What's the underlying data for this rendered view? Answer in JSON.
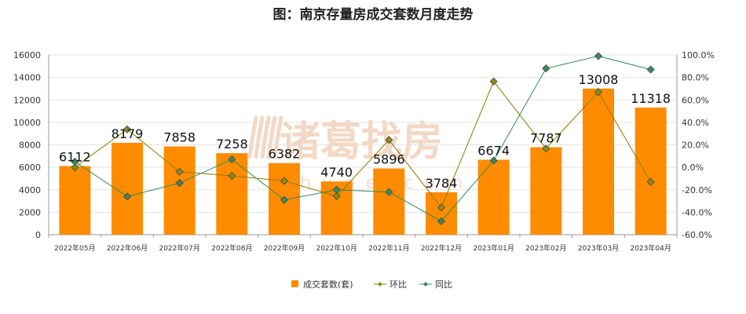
{
  "chart_data": {
    "type": "bar",
    "title": "图：南京存量房成交套数月度走势",
    "categories": [
      "2022年05月",
      "2022年06月",
      "2022年07月",
      "2022年08月",
      "2022年09月",
      "2022年10月",
      "2022年11月",
      "2022年12月",
      "2023年01月",
      "2023年02月",
      "2023年03月",
      "2023年04月"
    ],
    "series": [
      {
        "name": "成交套数(套)",
        "type": "bar",
        "axis": "left",
        "color": "#ff8c00",
        "values": [
          6112,
          8179,
          7858,
          7258,
          6382,
          4740,
          5896,
          3784,
          6674,
          7787,
          13008,
          11318
        ]
      },
      {
        "name": "环比",
        "type": "line",
        "axis": "right",
        "color": "#8c7a00",
        "marker_color": "#8b8b1f",
        "values": [
          0.0,
          33.8,
          -3.9,
          -7.6,
          -12.1,
          -25.7,
          24.4,
          -35.8,
          76.4,
          16.7,
          67.0,
          -13.0
        ]
      },
      {
        "name": "同比",
        "type": "line",
        "axis": "right",
        "color": "#2e8b57",
        "marker_color": "#3a8a5a",
        "values": [
          5.0,
          -26.0,
          -14.0,
          7.0,
          -29.0,
          -20.0,
          -22.0,
          -48.0,
          6.0,
          88.0,
          99.0,
          87.0
        ]
      }
    ],
    "y_left": {
      "min": 0,
      "max": 16000,
      "ticks": [
        "0",
        "2000",
        "4000",
        "6000",
        "8000",
        "10000",
        "12000",
        "14000",
        "16000"
      ]
    },
    "y_right": {
      "min": -60,
      "max": 100,
      "ticks": [
        "-60.0%",
        "-40.0%",
        "-20.0%",
        "0.0%",
        "20.0%",
        "40.0%",
        "60.0%",
        "80.0%",
        "100.0%"
      ]
    },
    "grid": true,
    "legend_position": "bottom-center",
    "watermark": "诸葛找房 zhuge.com"
  }
}
